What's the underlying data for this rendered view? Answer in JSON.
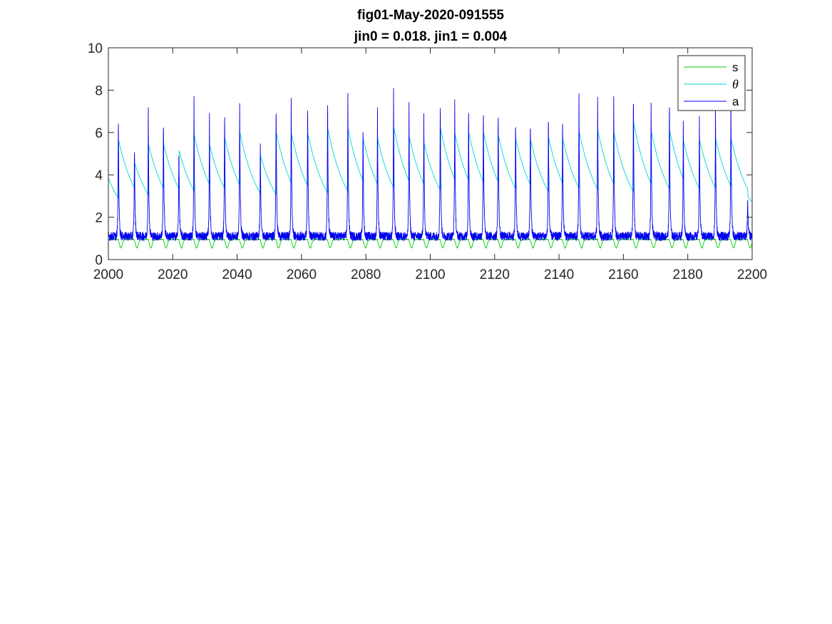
{
  "chart_data": {
    "type": "line",
    "title": [
      "fig01-May-2020-091555",
      "jin0 = 0.018. jin1 = 0.004"
    ],
    "xlabel": "",
    "ylabel": "",
    "xlim": [
      2000,
      2200
    ],
    "ylim": [
      0,
      10
    ],
    "xticks": [
      2000,
      2020,
      2040,
      2060,
      2080,
      2100,
      2120,
      2140,
      2160,
      2180,
      2200
    ],
    "yticks": [
      0,
      2,
      4,
      6,
      8,
      10
    ],
    "grid": false,
    "legend_position": "top-right",
    "spike_times": [
      2003.1,
      2008.1,
      2012.4,
      2017.1,
      2021.9,
      2026.6,
      2031.4,
      2036.1,
      2040.8,
      2047.2,
      2052.1,
      2056.8,
      2061.9,
      2068.1,
      2074.4,
      2079.1,
      2083.6,
      2088.6,
      2093.4,
      2098.0,
      2103.1,
      2107.6,
      2111.9,
      2116.5,
      2121.1,
      2126.5,
      2131.1,
      2136.7,
      2141.1,
      2146.2,
      2152.0,
      2157.0,
      2163.1,
      2168.6,
      2174.3,
      2178.6,
      2183.6,
      2188.6,
      2193.4,
      2198.6
    ],
    "spike_peaks_a": [
      7.05,
      5.7,
      7.05,
      6.95,
      5.5,
      7.55,
      6.8,
      7.25,
      7.5,
      5.6,
      7.65,
      7.5,
      7.5,
      7.8,
      7.8,
      6.5,
      7.0,
      7.9,
      7.25,
      6.7,
      7.8,
      7.5,
      7.5,
      7.45,
      7.35,
      7.05,
      6.95,
      7.1,
      6.85,
      7.65,
      7.8,
      7.6,
      8.1,
      7.6,
      7.7,
      6.7,
      6.75,
      7.15,
      7.7,
      3.0
    ],
    "theta_start": 3.85,
    "theta_peaks": [
      5.7,
      4.6,
      5.5,
      5.5,
      5.2,
      5.95,
      5.45,
      5.8,
      6.05,
      4.95,
      6.05,
      6.0,
      6.0,
      6.25,
      6.25,
      5.75,
      5.75,
      6.3,
      5.85,
      5.55,
      6.25,
      6.0,
      6.05,
      6.05,
      5.9,
      5.75,
      5.7,
      5.8,
      5.75,
      6.1,
      6.15,
      6.05,
      6.55,
      6.1,
      6.15,
      5.65,
      5.7,
      5.75,
      5.75,
      3.0
    ],
    "baseline_a": 1.1,
    "baseline_s": 0.95,
    "trough_s": 0.55,
    "series": [
      {
        "name": "s",
        "color": "#00cc00",
        "style": "roman"
      },
      {
        "name": "θ",
        "color": "#00d5d5",
        "style": "italic"
      },
      {
        "name": "a",
        "color": "#0000ee",
        "style": "roman"
      }
    ]
  }
}
